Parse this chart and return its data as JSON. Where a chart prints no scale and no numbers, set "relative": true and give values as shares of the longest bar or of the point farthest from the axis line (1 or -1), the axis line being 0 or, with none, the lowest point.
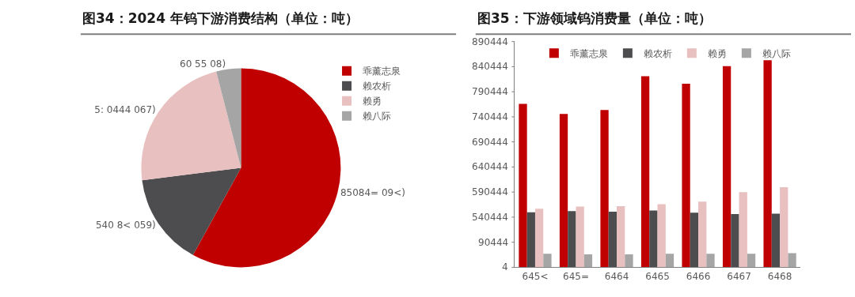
{
  "chart_data": [
    {
      "type": "pie",
      "title": "图34：2024 年钨下游消费结构（单位：吨）",
      "categories": [
        "乖薰志泉",
        "赖农析",
        "赖勇",
        "赖八际"
      ],
      "values": [
        58,
        15,
        23,
        4
      ],
      "colors": [
        "#c00000",
        "#4d4d4f",
        "#e9c0c0",
        "#a5a5a5"
      ],
      "annotations": [
        "85084= 09<)",
        "540 8< 059)",
        "5: 0444 067)",
        "60 55 08)"
      ],
      "legend": "right"
    },
    {
      "type": "bar",
      "title": "图35：下游领域钨消费量（单位：吨）",
      "categories": [
        "645<",
        "645=",
        "6464",
        "6465",
        "6466",
        "6467",
        "6468"
      ],
      "relative": true,
      "series": [
        {
          "name": "乖薰志泉",
          "color": "#c00000",
          "values": [
            0.789,
            0.741,
            0.76,
            0.923,
            0.886,
            0.971,
            1
          ]
        },
        {
          "name": "赖农析",
          "color": "#4d4d4f",
          "values": [
            0.266,
            0.271,
            0.269,
            0.274,
            0.264,
            0.257,
            0.259
          ]
        },
        {
          "name": "赖勇",
          "color": "#e9c0c0",
          "values": [
            0.283,
            0.293,
            0.295,
            0.305,
            0.317,
            0.363,
            0.387
          ]
        },
        {
          "name": "赖八际",
          "color": "#a5a5a5",
          "values": [
            0.065,
            0.063,
            0.063,
            0.065,
            0.065,
            0.065,
            0.068
          ]
        }
      ],
      "annotations": [
        "4",
        "90444",
        "540444",
        "590444",
        "640444",
        "690444",
        "740444",
        "790444",
        "840444",
        "890444"
      ],
      "legend": "top"
    }
  ]
}
